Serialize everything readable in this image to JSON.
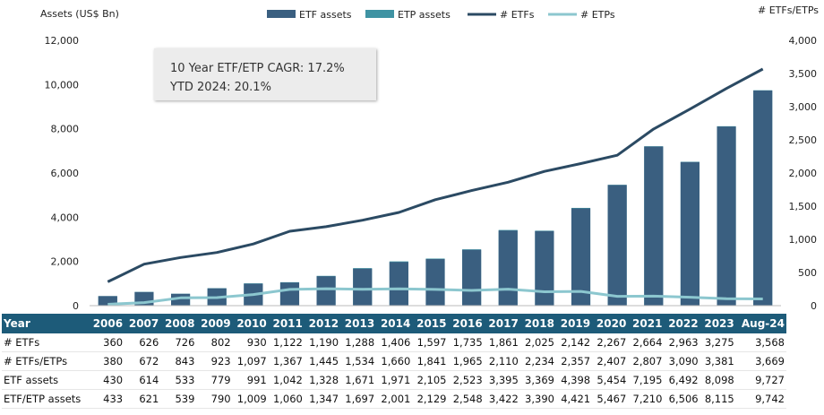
{
  "chart_data": {
    "type": "bar",
    "title": "",
    "ylabel": "Assets (US$ Bn)",
    "y2label": "# ETFs/ETPs",
    "ylim": [
      0,
      12000
    ],
    "y2lim": [
      0,
      4000
    ],
    "yticks": [
      "0",
      "2,000",
      "4,000",
      "6,000",
      "8,000",
      "10,000",
      "12,000"
    ],
    "y2ticks": [
      "0",
      "500",
      "1,000",
      "1,500",
      "2,000",
      "2,500",
      "3,000",
      "3,500",
      "4,000"
    ],
    "legend_position": "top",
    "grid": false,
    "categories": [
      "2006",
      "2007",
      "2008",
      "2009",
      "2010",
      "2011",
      "2012",
      "2013",
      "2014",
      "2015",
      "2016",
      "2017",
      "2018",
      "2019",
      "2020",
      "2021",
      "2022",
      "2023",
      "Aug-24"
    ],
    "series": [
      {
        "name": "ETF assets",
        "kind": "bar",
        "axis": "left",
        "color": "#3a5f80",
        "values": [
          430,
          614,
          533,
          779,
          991,
          1042,
          1328,
          1671,
          1971,
          2105,
          2523,
          3395,
          3369,
          4398,
          5454,
          7195,
          6492,
          8098,
          9727
        ]
      },
      {
        "name": "ETP assets",
        "kind": "bar",
        "axis": "left",
        "color": "#3f93a3",
        "values": [
          433,
          621,
          539,
          790,
          1009,
          1060,
          1347,
          1697,
          2001,
          2129,
          2548,
          3422,
          3390,
          4421,
          5467,
          7210,
          6506,
          8115,
          9742
        ]
      },
      {
        "name": "# ETFs",
        "kind": "line",
        "axis": "right",
        "color": "#2b4a63",
        "values": [
          360,
          626,
          726,
          802,
          930,
          1122,
          1190,
          1288,
          1406,
          1597,
          1735,
          1861,
          2025,
          2142,
          2267,
          2664,
          2963,
          3275,
          3568
        ]
      },
      {
        "name": "# ETPs",
        "kind": "line",
        "axis": "right",
        "color": "#8cc7cf",
        "values": [
          20,
          46,
          117,
          121,
          167,
          245,
          255,
          246,
          254,
          244,
          230,
          249,
          209,
          215,
          140,
          143,
          127,
          106,
          101
        ]
      }
    ],
    "annotation": {
      "line1": "10 Year ETF/ETP CAGR: 17.2%",
      "line2": "YTD 2024: 20.1%"
    },
    "table": {
      "header_label": "Year",
      "rows": [
        {
          "label": "# ETFs",
          "values": [
            "360",
            "626",
            "726",
            "802",
            "930",
            "1,122",
            "1,190",
            "1,288",
            "1,406",
            "1,597",
            "1,735",
            "1,861",
            "2,025",
            "2,142",
            "2,267",
            "2,664",
            "2,963",
            "3,275",
            "3,568"
          ]
        },
        {
          "label": "# ETFs/ETPs",
          "values": [
            "380",
            "672",
            "843",
            "923",
            "1,097",
            "1,367",
            "1,445",
            "1,534",
            "1,660",
            "1,841",
            "1,965",
            "2,110",
            "2,234",
            "2,357",
            "2,407",
            "2,807",
            "3,090",
            "3,381",
            "3,669"
          ]
        },
        {
          "label": "ETF assets",
          "values": [
            "430",
            "614",
            "533",
            "779",
            "991",
            "1,042",
            "1,328",
            "1,671",
            "1,971",
            "2,105",
            "2,523",
            "3,395",
            "3,369",
            "4,398",
            "5,454",
            "7,195",
            "6,492",
            "8,098",
            "9,727"
          ]
        },
        {
          "label": "ETF/ETP assets",
          "values": [
            "433",
            "621",
            "539",
            "790",
            "1,009",
            "1,060",
            "1,347",
            "1,697",
            "2,001",
            "2,129",
            "2,548",
            "3,422",
            "3,390",
            "4,421",
            "5,467",
            "7,210",
            "6,506",
            "8,115",
            "9,742"
          ]
        }
      ]
    }
  }
}
